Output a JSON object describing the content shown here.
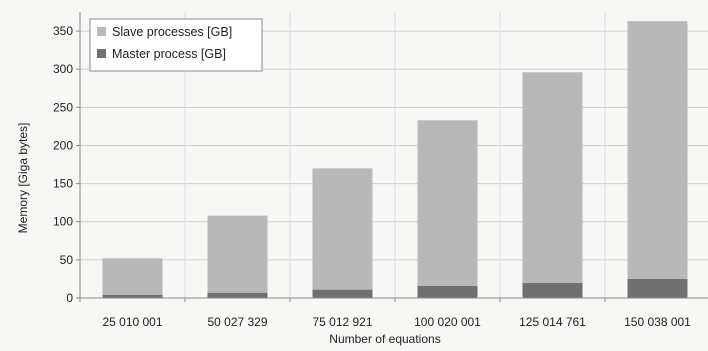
{
  "chart_data": {
    "type": "bar",
    "stacked": true,
    "categories": [
      "25 010 001",
      "50 027 329",
      "75 012 921",
      "100 020 001",
      "125 014 761",
      "150 038 001"
    ],
    "series": [
      {
        "name": "Master process [GB]",
        "values": [
          4,
          7,
          11,
          16,
          20,
          25
        ],
        "color": "#707070"
      },
      {
        "name": "Slave processes [GB]",
        "values": [
          48,
          101,
          159,
          217,
          276,
          338
        ],
        "color": "#b8b8b8"
      }
    ],
    "legend_order": [
      "Slave processes [GB]",
      "Master process [GB]"
    ],
    "title": "",
    "xlabel": "Number of equations",
    "ylabel": "Memory [Giga bytes]",
    "ylim": [
      0,
      375
    ],
    "yticks": [
      0,
      50,
      100,
      150,
      200,
      250,
      300,
      350
    ],
    "grid": true,
    "legend_position": "top-left"
  }
}
